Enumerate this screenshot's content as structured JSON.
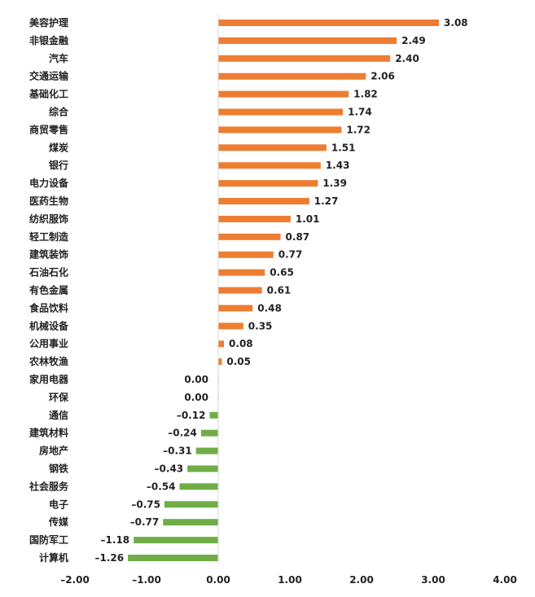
{
  "colors": {
    "positive": "#ED7D31",
    "negative": "#70AD47",
    "axis": "#D9D9D9",
    "text": "#222222"
  },
  "chart_data": {
    "type": "bar",
    "orientation": "horizontal",
    "title": "",
    "xlabel": "",
    "ylabel": "",
    "xlim": [
      -2.0,
      4.0
    ],
    "grid": false,
    "legend": "none",
    "categories": [
      "美容护理",
      "非银金融",
      "汽车",
      "交通运输",
      "基础化工",
      "综合",
      "商贸零售",
      "煤炭",
      "银行",
      "电力设备",
      "医药生物",
      "纺织服饰",
      "轻工制造",
      "建筑装饰",
      "石油石化",
      "有色金属",
      "食品饮料",
      "机械设备",
      "公用事业",
      "农林牧渔",
      "家用电器",
      "环保",
      "通信",
      "建筑材料",
      "房地产",
      "钢铁",
      "社会服务",
      "电子",
      "传媒",
      "国防军工",
      "计算机"
    ],
    "values": [
      3.08,
      2.49,
      2.4,
      2.06,
      1.82,
      1.74,
      1.72,
      1.51,
      1.43,
      1.39,
      1.27,
      1.01,
      0.87,
      0.77,
      0.65,
      0.61,
      0.48,
      0.35,
      0.08,
      0.05,
      0.0,
      0.0,
      -0.12,
      -0.24,
      -0.31,
      -0.43,
      -0.54,
      -0.75,
      -0.77,
      -1.18,
      -1.26
    ],
    "value_labels": [
      "3.08",
      "2.49",
      "2.40",
      "2.06",
      "1.82",
      "1.74",
      "1.72",
      "1.51",
      "1.43",
      "1.39",
      "1.27",
      "1.01",
      "0.87",
      "0.77",
      "0.65",
      "0.61",
      "0.48",
      "0.35",
      "0.08",
      "0.05",
      "0.00",
      "0.00",
      "–0.12",
      "–0.24",
      "–0.31",
      "–0.43",
      "–0.54",
      "–0.75",
      "–0.77",
      "–1.18",
      "–1.26"
    ],
    "x_ticks": [
      -2.0,
      -1.0,
      0.0,
      1.0,
      2.0,
      3.0,
      4.0
    ],
    "x_tick_labels": [
      "–2.00",
      "–1.00",
      "0.00",
      "1.00",
      "2.00",
      "3.00",
      "4.00"
    ]
  }
}
